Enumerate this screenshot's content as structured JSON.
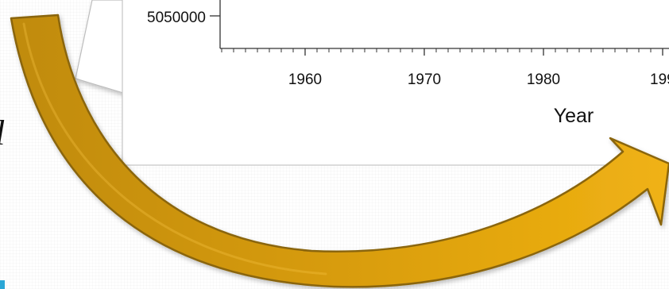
{
  "chart_data": {
    "type": "line",
    "xlabel": "Year",
    "ylabel": "",
    "title": "",
    "xlim": [
      1950,
      1995
    ],
    "x_ticks": [
      1960,
      1970,
      1980,
      "199"
    ],
    "y_ticks": [
      "5050000"
    ],
    "grid": false
  },
  "side_text": "l",
  "colors": {
    "arrow_fill": "#d8a10d",
    "arrow_dark": "#b88306",
    "arrow_stroke": "#8a6508",
    "axis": "#333333",
    "accent": "#2aa7d6"
  }
}
